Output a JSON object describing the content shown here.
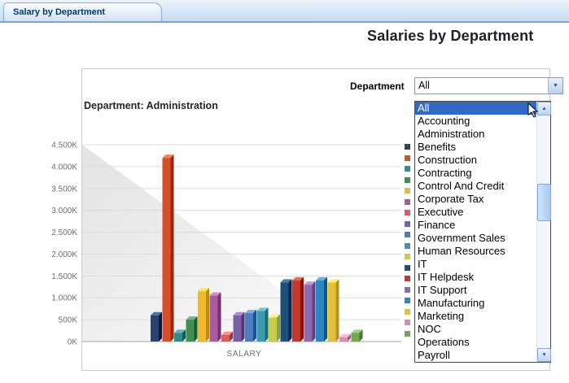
{
  "window": {
    "tab_label": "Salary by Department"
  },
  "page": {
    "title": "Salaries by Department"
  },
  "filter": {
    "label": "Department",
    "value": "All"
  },
  "dropdown": {
    "selected": "All",
    "items": [
      "All",
      "Accounting",
      "Administration",
      "Benefits",
      "Construction",
      "Contracting",
      "Control And Credit",
      "Corporate Tax",
      "Executive",
      "Finance",
      "Government Sales",
      "Human Resources",
      "IT",
      "IT Helpdesk",
      "IT Support",
      "Manufacturing",
      "Marketing",
      "NOC",
      "Operations",
      "Payroll"
    ]
  },
  "icons": {
    "combo_arrow": "▼",
    "scroll_up": "▲",
    "scroll_down": "▼"
  },
  "chart": {
    "title": "Department: Administration"
  },
  "chart_data": {
    "type": "bar",
    "title": "Department: Administration",
    "xlabel": "SALARY",
    "ylabel": "",
    "ylim": [
      0,
      4500
    ],
    "unit": "K",
    "grid": true,
    "legend_position": "right",
    "ytick_labels": [
      "4.500K",
      "4.000K",
      "3.500K",
      "3.000K",
      "2.500K",
      "2.000K",
      "1.500K",
      "1.000K",
      "500K",
      "0K"
    ],
    "series": [
      {
        "name": "Accounting",
        "value": 600,
        "color": "#26456E"
      },
      {
        "name": "Administration",
        "value": 4200,
        "color": "#D4502E"
      },
      {
        "name": "Benefits",
        "value": 200,
        "color": "#2F8E89"
      },
      {
        "name": "Construction",
        "value": 500,
        "color": "#3F8F55"
      },
      {
        "name": "Contracting",
        "value": 1150,
        "color": "#EDB92E"
      },
      {
        "name": "Control And Credit",
        "value": 1050,
        "color": "#A85C9C"
      },
      {
        "name": "Corporate Tax",
        "value": 150,
        "color": "#D45F5F"
      },
      {
        "name": "Executive",
        "value": 600,
        "color": "#7D5FA8"
      },
      {
        "name": "Finance",
        "value": 650,
        "color": "#4E7DBF"
      },
      {
        "name": "Government Sales",
        "value": 700,
        "color": "#3E98AE"
      },
      {
        "name": "Human Resources",
        "value": 550,
        "color": "#C3CE52"
      },
      {
        "name": "IT",
        "value": 1350,
        "color": "#1F4E79"
      },
      {
        "name": "IT Helpdesk",
        "value": 1400,
        "color": "#C0392B"
      },
      {
        "name": "IT Support",
        "value": 1300,
        "color": "#8E6BAE"
      },
      {
        "name": "Manufacturing",
        "value": 1400,
        "color": "#2E86C1"
      },
      {
        "name": "Marketing",
        "value": 1350,
        "color": "#E4C03F"
      },
      {
        "name": "NOC",
        "value": 100,
        "color": "#D98CB3"
      },
      {
        "name": "Operations",
        "value": 200,
        "color": "#6FA84F"
      }
    ]
  }
}
